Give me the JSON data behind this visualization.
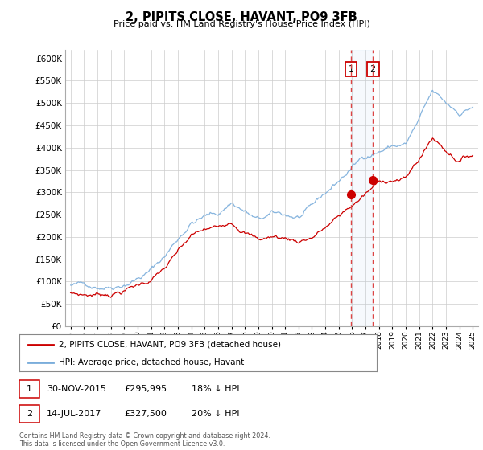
{
  "title": "2, PIPITS CLOSE, HAVANT, PO9 3FB",
  "subtitle": "Price paid vs. HM Land Registry's House Price Index (HPI)",
  "ylim": [
    0,
    620000
  ],
  "yticks": [
    0,
    50000,
    100000,
    150000,
    200000,
    250000,
    300000,
    350000,
    400000,
    450000,
    500000,
    550000,
    600000
  ],
  "hpi_color": "#7aaddb",
  "price_color": "#cc0000",
  "transaction1_x": 2015.9167,
  "transaction1_y": 295995,
  "transaction2_x": 2017.5417,
  "transaction2_y": 327500,
  "legend_line1": "2, PIPITS CLOSE, HAVANT, PO9 3FB (detached house)",
  "legend_line2": "HPI: Average price, detached house, Havant",
  "table_row1": [
    "1",
    "30-NOV-2015",
    "£295,995",
    "18% ↓ HPI"
  ],
  "table_row2": [
    "2",
    "14-JUL-2017",
    "£327,500",
    "20% ↓ HPI"
  ],
  "footnote": "Contains HM Land Registry data © Crown copyright and database right 2024.\nThis data is licensed under the Open Government Licence v3.0.",
  "background_color": "#ffffff",
  "grid_color": "#cccccc",
  "xmin": 1995.0,
  "xmax": 2025.0
}
